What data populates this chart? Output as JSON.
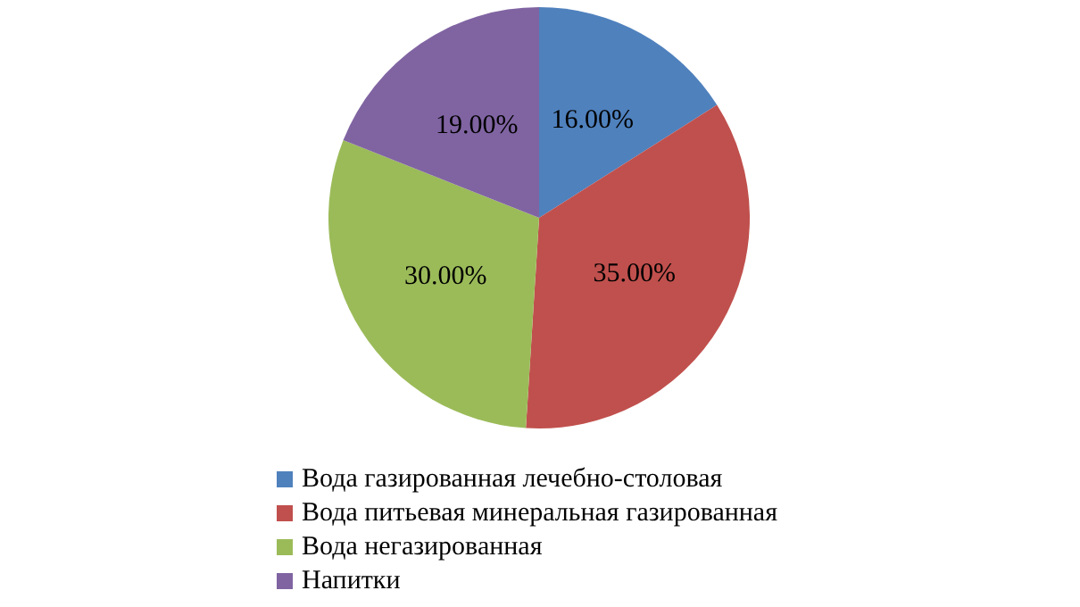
{
  "chart_data": {
    "type": "pie",
    "categories": [
      "Вода газированная лечебно-столовая",
      "Вода питьевая минеральная газированная",
      "Вода негазированная",
      "Напитки"
    ],
    "values": [
      16,
      35,
      30,
      19
    ],
    "colors": [
      "#4f81bd",
      "#c0504d",
      "#9bbb59",
      "#8064a2"
    ],
    "value_labels": [
      "16.00%",
      "35.00%",
      "30.00%",
      "19.00%"
    ],
    "legend": "bottom"
  }
}
